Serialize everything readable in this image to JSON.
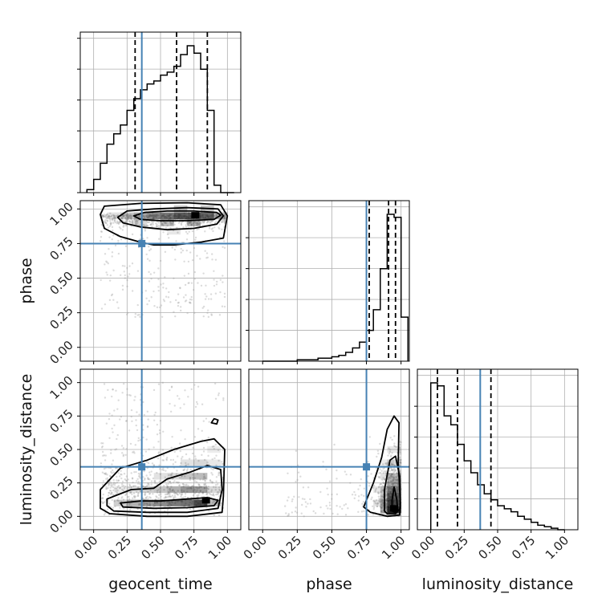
{
  "colors": {
    "truth": "#4682b4",
    "histogram": "#000000",
    "quantile": "#000000",
    "grid": "#b0b0b0",
    "scatter": "#9a9a9a",
    "density_dark": "#000000"
  },
  "chart_data": {
    "type": "corner",
    "parameters": [
      "geocent_time",
      "phase",
      "luminosity_distance"
    ],
    "axis_labels": {
      "x": [
        "geocent_time",
        "phase",
        "luminosity_distance"
      ],
      "y": [
        "",
        "phase",
        "luminosity_distance"
      ]
    },
    "ticks": [
      0.0,
      0.25,
      0.5,
      0.75,
      1.0
    ],
    "tick_labels": [
      "0.00",
      "0.25",
      "0.50",
      "0.75",
      "1.00"
    ],
    "ranges": [
      [
        -0.1,
        1.1
      ],
      [
        -0.1,
        1.06
      ],
      [
        -0.1,
        1.1
      ]
    ],
    "truths": [
      0.36,
      0.75,
      0.37
    ],
    "grid": true,
    "histograms": [
      {
        "parameter": "geocent_time",
        "bin_edges": [
          -0.05,
          0.0,
          0.05,
          0.1,
          0.15,
          0.2,
          0.25,
          0.3,
          0.35,
          0.4,
          0.45,
          0.5,
          0.55,
          0.6,
          0.65,
          0.7,
          0.75,
          0.8,
          0.85,
          0.9,
          0.95,
          1.0,
          1.05
        ],
        "counts": [
          2,
          9,
          20,
          33,
          40,
          46,
          56,
          64,
          70,
          74,
          76,
          80,
          82,
          86,
          94,
          100,
          95,
          84,
          56,
          5,
          0,
          0
        ],
        "quantiles": [
          0.31,
          0.62,
          0.85
        ]
      },
      {
        "parameter": "phase",
        "bin_edges": [
          0.0,
          0.05,
          0.1,
          0.15,
          0.2,
          0.25,
          0.3,
          0.35,
          0.4,
          0.45,
          0.5,
          0.55,
          0.6,
          0.65,
          0.7,
          0.75,
          0.8,
          0.85,
          0.9,
          0.95,
          1.0,
          1.05
        ],
        "counts": [
          0,
          0,
          0,
          0,
          0,
          1,
          1,
          1,
          2,
          2,
          3,
          4,
          6,
          9,
          13,
          21,
          35,
          63,
          100,
          98,
          30
        ],
        "quantiles": [
          0.77,
          0.91,
          0.96
        ]
      },
      {
        "parameter": "luminosity_distance",
        "bin_edges": [
          0.0,
          0.05,
          0.1,
          0.15,
          0.2,
          0.25,
          0.3,
          0.35,
          0.4,
          0.45,
          0.5,
          0.55,
          0.6,
          0.65,
          0.7,
          0.75,
          0.8,
          0.85,
          0.9,
          0.95,
          1.0
        ],
        "counts": [
          98,
          96,
          76,
          70,
          57,
          46,
          38,
          30,
          24,
          20,
          16,
          14,
          12,
          9,
          7,
          5,
          3,
          2,
          1,
          0
        ],
        "quantiles": [
          0.05,
          0.2,
          0.45
        ]
      }
    ],
    "pairs": [
      {
        "x_param": "geocent_time",
        "y_param": "phase",
        "density_cells": [
          {
            "x": 0.45,
            "y": 0.95,
            "w": 0.6
          },
          {
            "x": 0.55,
            "y": 0.95,
            "w": 0.7
          },
          {
            "x": 0.65,
            "y": 0.95,
            "w": 0.85
          },
          {
            "x": 0.75,
            "y": 0.95,
            "w": 0.9
          },
          {
            "x": 0.85,
            "y": 0.95,
            "w": 0.8
          },
          {
            "x": 0.35,
            "y": 0.95,
            "w": 0.45
          },
          {
            "x": 0.25,
            "y": 0.95,
            "w": 0.3
          },
          {
            "x": 0.95,
            "y": 0.95,
            "w": 0.35
          },
          {
            "x": 0.15,
            "y": 0.95,
            "w": 0.15
          },
          {
            "x": 0.55,
            "y": 0.9,
            "w": 0.35
          },
          {
            "x": 0.75,
            "y": 0.9,
            "w": 0.4
          },
          {
            "x": 0.35,
            "y": 0.9,
            "w": 0.2
          },
          {
            "x": 0.65,
            "y": 1.0,
            "w": 0.3
          },
          {
            "x": 0.85,
            "y": 1.0,
            "w": 0.3
          },
          {
            "x": 0.6,
            "y": 0.84,
            "w": 0.12
          }
        ],
        "contours": [
          [
            [
              0.3,
              0.95
            ],
            [
              0.38,
              0.975
            ],
            [
              0.55,
              0.985
            ],
            [
              0.75,
              0.985
            ],
            [
              0.92,
              0.975
            ],
            [
              0.95,
              0.955
            ],
            [
              0.9,
              0.925
            ],
            [
              0.7,
              0.915
            ],
            [
              0.5,
              0.915
            ],
            [
              0.35,
              0.925
            ],
            [
              0.3,
              0.95
            ]
          ],
          [
            [
              0.18,
              0.94
            ],
            [
              0.25,
              0.985
            ],
            [
              0.45,
              1.0
            ],
            [
              0.7,
              1.01
            ],
            [
              0.93,
              1.0
            ],
            [
              0.97,
              0.95
            ],
            [
              0.92,
              0.89
            ],
            [
              0.75,
              0.86
            ],
            [
              0.55,
              0.85
            ],
            [
              0.35,
              0.87
            ],
            [
              0.22,
              0.9
            ],
            [
              0.18,
              0.94
            ]
          ],
          [
            [
              0.05,
              0.96
            ],
            [
              0.08,
              1.02
            ],
            [
              0.35,
              1.04
            ],
            [
              0.7,
              1.045
            ],
            [
              0.95,
              1.03
            ],
            [
              1.0,
              0.95
            ],
            [
              0.97,
              0.79
            ],
            [
              0.8,
              0.76
            ],
            [
              0.6,
              0.74
            ],
            [
              0.45,
              0.74
            ],
            [
              0.35,
              0.76
            ],
            [
              0.2,
              0.8
            ],
            [
              0.08,
              0.86
            ],
            [
              0.05,
              0.96
            ]
          ]
        ],
        "peak": {
          "x": 0.76,
          "y": 0.955
        }
      },
      {
        "x_param": "geocent_time",
        "y_param": "luminosity_distance",
        "density_cells": [
          {
            "x": 0.8,
            "y": 0.1,
            "w": 0.95
          },
          {
            "x": 0.7,
            "y": 0.1,
            "w": 0.75
          },
          {
            "x": 0.6,
            "y": 0.1,
            "w": 0.7
          },
          {
            "x": 0.5,
            "y": 0.1,
            "w": 0.6
          },
          {
            "x": 0.4,
            "y": 0.1,
            "w": 0.5
          },
          {
            "x": 0.3,
            "y": 0.1,
            "w": 0.4
          },
          {
            "x": 0.2,
            "y": 0.1,
            "w": 0.25
          },
          {
            "x": 0.9,
            "y": 0.1,
            "w": 0.35
          },
          {
            "x": 0.7,
            "y": 0.2,
            "w": 0.55
          },
          {
            "x": 0.8,
            "y": 0.2,
            "w": 0.5
          },
          {
            "x": 0.6,
            "y": 0.2,
            "w": 0.4
          },
          {
            "x": 0.5,
            "y": 0.2,
            "w": 0.3
          },
          {
            "x": 0.4,
            "y": 0.2,
            "w": 0.25
          },
          {
            "x": 0.3,
            "y": 0.2,
            "w": 0.15
          },
          {
            "x": 0.7,
            "y": 0.3,
            "w": 0.3
          },
          {
            "x": 0.8,
            "y": 0.3,
            "w": 0.35
          },
          {
            "x": 0.6,
            "y": 0.3,
            "w": 0.2
          },
          {
            "x": 0.5,
            "y": 0.3,
            "w": 0.15
          },
          {
            "x": 0.8,
            "y": 0.4,
            "w": 0.2
          },
          {
            "x": 0.7,
            "y": 0.4,
            "w": 0.15
          },
          {
            "x": 0.9,
            "y": 0.2,
            "w": 0.2
          },
          {
            "x": 0.2,
            "y": 0.2,
            "w": 0.1
          },
          {
            "x": 0.9,
            "y": 0.4,
            "w": 0.12
          },
          {
            "x": 0.9,
            "y": 0.5,
            "w": 0.1
          }
        ],
        "contours": [
          [
            [
              0.22,
              0.07
            ],
            [
              0.2,
              0.1
            ],
            [
              0.35,
              0.115
            ],
            [
              0.5,
              0.115
            ],
            [
              0.7,
              0.13
            ],
            [
              0.85,
              0.14
            ],
            [
              0.93,
              0.12
            ],
            [
              0.9,
              0.08
            ],
            [
              0.7,
              0.065
            ],
            [
              0.45,
              0.06
            ],
            [
              0.22,
              0.07
            ]
          ],
          [
            [
              0.1,
              0.08
            ],
            [
              0.1,
              0.13
            ],
            [
              0.28,
              0.2
            ],
            [
              0.45,
              0.21
            ],
            [
              0.55,
              0.28
            ],
            [
              0.72,
              0.33
            ],
            [
              0.85,
              0.38
            ],
            [
              0.95,
              0.35
            ],
            [
              0.96,
              0.2
            ],
            [
              0.93,
              0.06
            ],
            [
              0.7,
              0.03
            ],
            [
              0.4,
              0.03
            ],
            [
              0.15,
              0.04
            ],
            [
              0.1,
              0.08
            ]
          ],
          [
            [
              0.05,
              0.06
            ],
            [
              0.05,
              0.2
            ],
            [
              0.2,
              0.36
            ],
            [
              0.4,
              0.42
            ],
            [
              0.6,
              0.5
            ],
            [
              0.8,
              0.56
            ],
            [
              0.9,
              0.58
            ],
            [
              0.98,
              0.5
            ],
            [
              0.97,
              0.15
            ],
            [
              0.96,
              0.03
            ],
            [
              0.7,
              0.0
            ],
            [
              0.4,
              0.0
            ],
            [
              0.12,
              0.02
            ],
            [
              0.05,
              0.06
            ]
          ],
          [
            [
              0.88,
              0.7
            ],
            [
              0.9,
              0.73
            ],
            [
              0.93,
              0.72
            ],
            [
              0.92,
              0.69
            ],
            [
              0.88,
              0.7
            ]
          ]
        ],
        "peak": {
          "x": 0.84,
          "y": 0.12
        }
      },
      {
        "x_param": "phase",
        "y_param": "luminosity_distance",
        "density_cells": [
          {
            "x": 0.95,
            "y": 0.05,
            "w": 1.0
          },
          {
            "x": 0.95,
            "y": 0.1,
            "w": 0.85
          },
          {
            "x": 0.95,
            "y": 0.15,
            "w": 0.7
          },
          {
            "x": 0.95,
            "y": 0.2,
            "w": 0.55
          },
          {
            "x": 0.95,
            "y": 0.25,
            "w": 0.4
          },
          {
            "x": 0.95,
            "y": 0.3,
            "w": 0.3
          },
          {
            "x": 0.9,
            "y": 0.05,
            "w": 0.45
          },
          {
            "x": 0.9,
            "y": 0.1,
            "w": 0.4
          },
          {
            "x": 0.9,
            "y": 0.15,
            "w": 0.3
          },
          {
            "x": 0.9,
            "y": 0.2,
            "w": 0.25
          },
          {
            "x": 0.9,
            "y": 0.3,
            "w": 0.15
          },
          {
            "x": 0.95,
            "y": 0.4,
            "w": 0.2
          },
          {
            "x": 0.85,
            "y": 0.1,
            "w": 0.15
          },
          {
            "x": 0.85,
            "y": 0.2,
            "w": 0.12
          },
          {
            "x": 0.95,
            "y": 0.5,
            "w": 0.12
          },
          {
            "x": 0.9,
            "y": 0.4,
            "w": 0.1
          }
        ],
        "contours": [
          [
            [
              0.935,
              0.04
            ],
            [
              0.935,
              0.12
            ],
            [
              0.95,
              0.22
            ],
            [
              0.97,
              0.12
            ],
            [
              0.975,
              0.05
            ],
            [
              0.955,
              0.03
            ],
            [
              0.935,
              0.04
            ]
          ],
          [
            [
              0.88,
              0.04
            ],
            [
              0.88,
              0.2
            ],
            [
              0.92,
              0.42
            ],
            [
              0.96,
              0.45
            ],
            [
              0.99,
              0.3
            ],
            [
              0.995,
              0.06
            ],
            [
              0.96,
              0.02
            ],
            [
              0.9,
              0.02
            ],
            [
              0.88,
              0.04
            ]
          ],
          [
            [
              0.73,
              0.07
            ],
            [
              0.8,
              0.25
            ],
            [
              0.86,
              0.44
            ],
            [
              0.9,
              0.65
            ],
            [
              0.95,
              0.75
            ],
            [
              0.985,
              0.7
            ],
            [
              0.98,
              0.4
            ],
            [
              0.995,
              0.1
            ],
            [
              0.99,
              0.01
            ],
            [
              0.9,
              0.0
            ],
            [
              0.78,
              0.03
            ],
            [
              0.73,
              0.07
            ]
          ]
        ],
        "peak": {
          "x": 0.95,
          "y": 0.06
        }
      }
    ],
    "scatter_seed": 7
  }
}
